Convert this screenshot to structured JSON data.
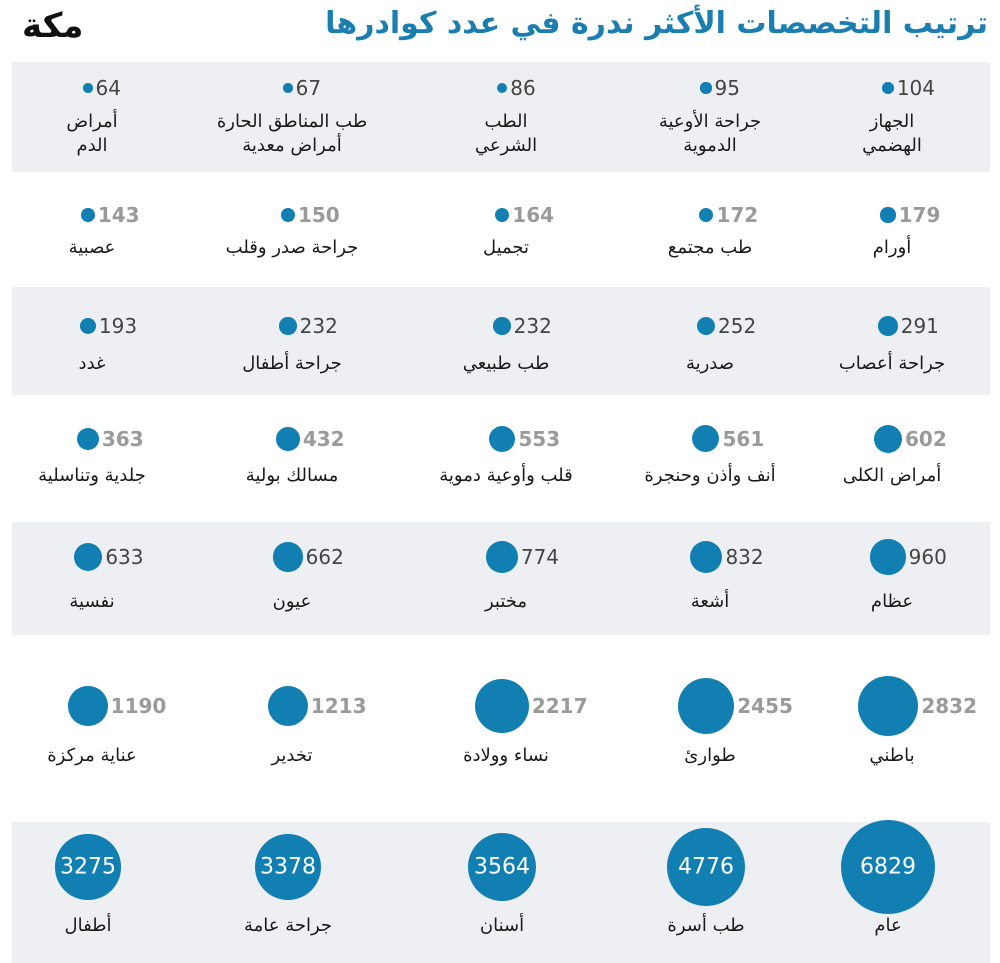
{
  "logo": "مكة",
  "chart_data": {
    "type": "bubble",
    "title": "ترتيب التخصصات الأكثر ندرة في عدد كوادرها",
    "color": "#127fb3",
    "categories": [
      "الجهاز\nالهضمي",
      "جراحة الأوعية\nالدموية",
      "الطب\nالشرعي",
      "طب المناطق الحارة\nأمراض معدية",
      "أمراض\nالدم",
      "أورام",
      "طب مجتمع",
      "تجميل",
      "جراحة صدر وقلب",
      "عصبية",
      "جراحة أعصاب",
      "صدرية",
      "طب طبيعي",
      "جراحة أطفال",
      "غدد",
      "أمراض الكلى",
      "أنف وأذن وحنجرة",
      "قلب وأوعية دموية",
      "مسالك بولية",
      "جلدية وتناسلية",
      "عظام",
      "أشعة",
      "مختبر",
      "عيون",
      "نفسية",
      "باطني",
      "طوارئ",
      "نساء وولادة",
      "تخدير",
      "عناية مركزة",
      "عام",
      "طب أسرة",
      "أسنان",
      "جراحة عامة",
      "أطفال"
    ],
    "values": [
      104,
      95,
      86,
      67,
      64,
      179,
      172,
      164,
      150,
      143,
      291,
      252,
      232,
      232,
      193,
      602,
      561,
      553,
      432,
      363,
      960,
      832,
      774,
      662,
      633,
      2832,
      2455,
      2217,
      1213,
      1190,
      6829,
      4776,
      3564,
      3378,
      3275
    ]
  }
}
